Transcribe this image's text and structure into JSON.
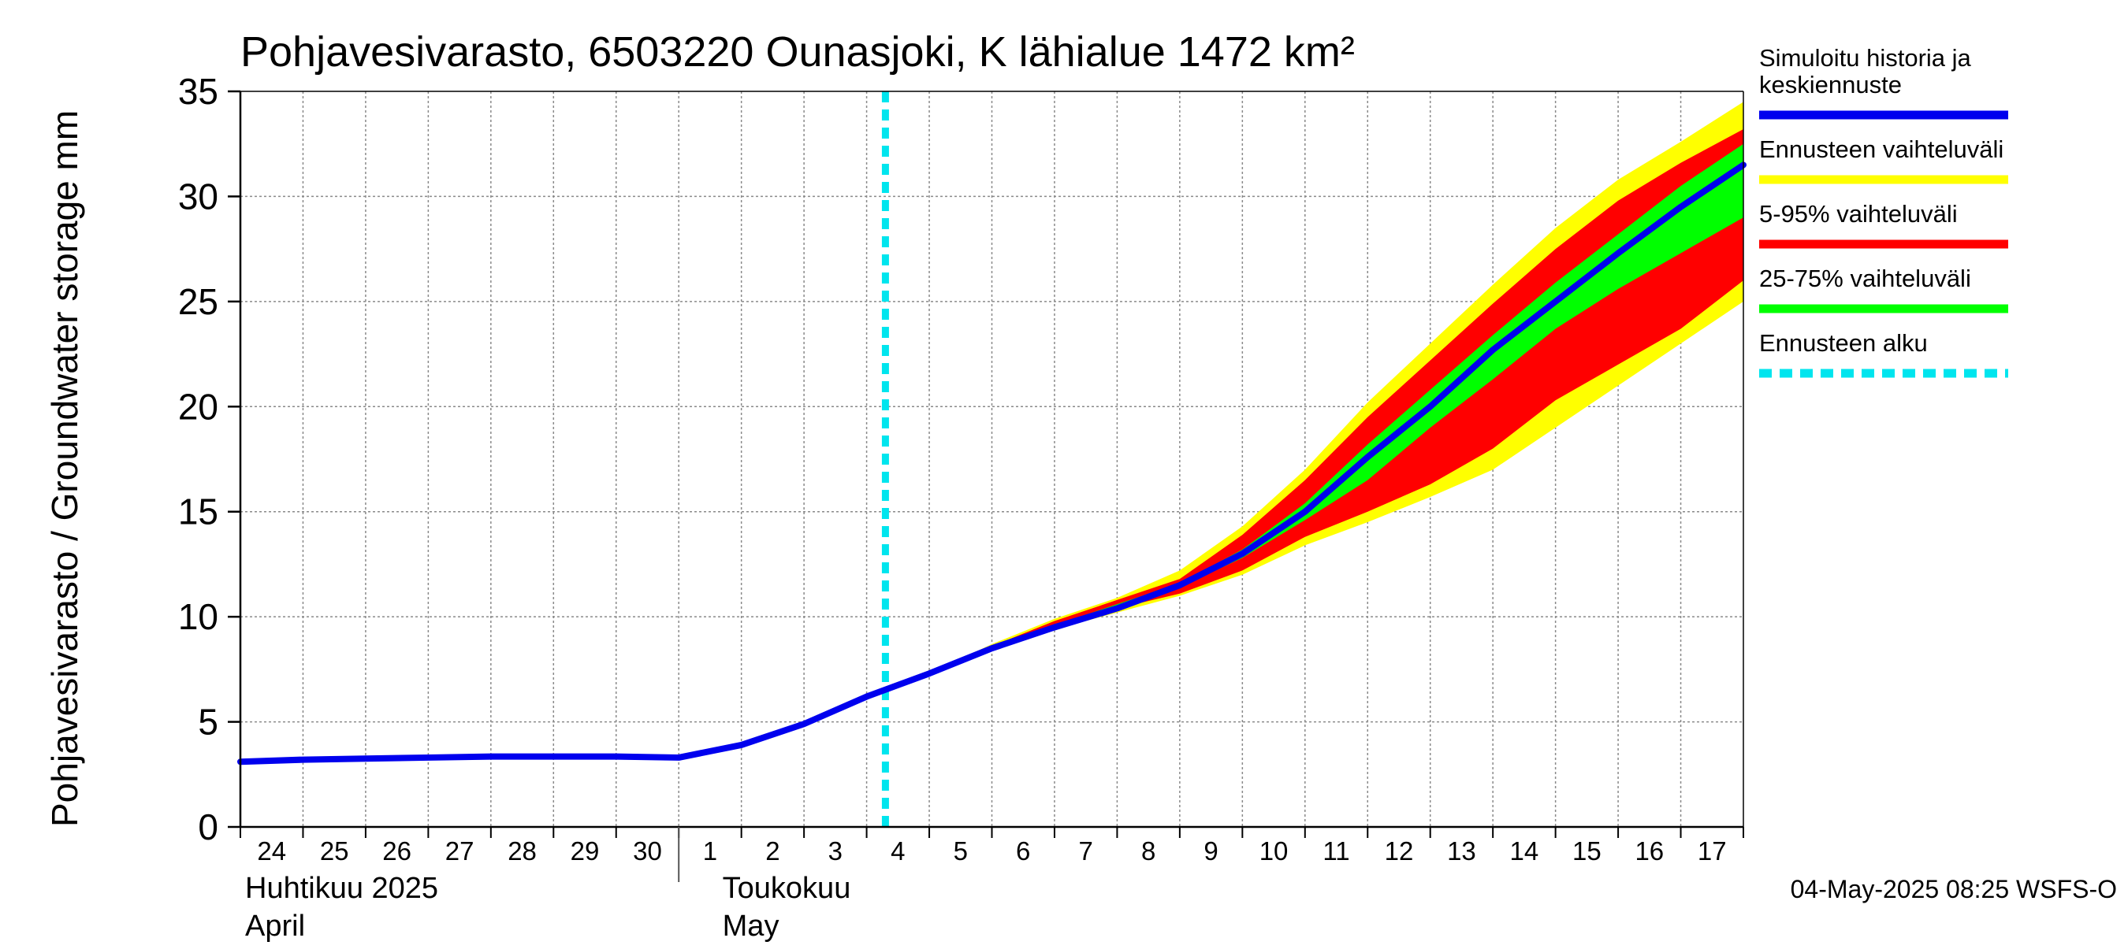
{
  "chart_data": {
    "type": "area",
    "title": "Pohjavesivarasto, 6503220 Ounasjoki, K lähialue 1472 km²",
    "ylabel": "Pohjavesivarasto / Groundwater storage   mm",
    "ylim": [
      0,
      35
    ],
    "y_ticks": [
      "0",
      "5",
      "10",
      "15",
      "20",
      "25",
      "30",
      "35"
    ],
    "x_tick_labels": [
      "24",
      "25",
      "26",
      "27",
      "28",
      "29",
      "30",
      "1",
      "2",
      "3",
      "4",
      "5",
      "6",
      "7",
      "8",
      "9",
      "10",
      "11",
      "12",
      "13",
      "14",
      "15",
      "16",
      "17"
    ],
    "month_labels": [
      {
        "line1": "Huhtikuu  2025",
        "line2": "April"
      },
      {
        "line1": "Toukokuu",
        "line2": "May"
      }
    ],
    "grid": true,
    "legend_position": "right",
    "forecast_start_day": 10.3,
    "legend": [
      {
        "label_lines": [
          "Simuloitu historia ja",
          "keskiennuste"
        ],
        "color": "#0000ee",
        "style": "solid"
      },
      {
        "label_lines": [
          "Ennusteen vaihteluväli"
        ],
        "color": "#ffff00",
        "style": "solid"
      },
      {
        "label_lines": [
          "5-95% vaihteluväli"
        ],
        "color": "#ff0000",
        "style": "solid"
      },
      {
        "label_lines": [
          "25-75% vaihteluväli"
        ],
        "color": "#00ff00",
        "style": "solid"
      },
      {
        "label_lines": [
          "Ennusteen alku"
        ],
        "color": "#00e5ee",
        "style": "dashed"
      }
    ],
    "series": [
      {
        "name": "Simuloitu historia ja keskiennuste",
        "x": [
          0,
          1,
          2,
          3,
          4,
          5,
          6,
          7,
          8,
          9,
          10,
          11,
          12,
          13,
          14,
          15,
          16,
          17,
          18,
          19,
          20,
          21,
          22,
          23,
          24
        ],
        "values": [
          3.1,
          3.2,
          3.25,
          3.3,
          3.35,
          3.35,
          3.35,
          3.3,
          3.9,
          4.9,
          6.2,
          7.3,
          8.5,
          9.5,
          10.4,
          11.5,
          13.0,
          15.0,
          17.6,
          20.0,
          22.7,
          25.0,
          27.3,
          29.5,
          31.5
        ]
      },
      {
        "name": "Ennusteen vaihteluväli",
        "x": [
          10.3,
          11,
          12,
          13,
          14,
          15,
          16,
          17,
          18,
          19,
          20,
          21,
          22,
          23,
          24
        ],
        "lower": [
          6.4,
          7.3,
          8.5,
          9.4,
          10.2,
          11.0,
          12.0,
          13.4,
          14.5,
          15.7,
          17.0,
          19.0,
          21.0,
          23.0,
          25.0
        ],
        "upper": [
          6.4,
          7.3,
          8.7,
          9.9,
          10.9,
          12.2,
          14.3,
          17.0,
          20.2,
          23.0,
          25.8,
          28.5,
          30.8,
          32.6,
          34.5
        ]
      },
      {
        "name": "5-95% vaihteluväli",
        "x": [
          10.3,
          11,
          12,
          13,
          14,
          15,
          16,
          17,
          18,
          19,
          20,
          21,
          22,
          23,
          24
        ],
        "lower": [
          6.4,
          7.3,
          8.5,
          9.5,
          10.4,
          11.1,
          12.2,
          13.8,
          15.0,
          16.3,
          18.0,
          20.3,
          22.0,
          23.7,
          26.0
        ],
        "upper": [
          6.4,
          7.3,
          8.6,
          9.8,
          10.8,
          11.8,
          13.9,
          16.5,
          19.5,
          22.2,
          24.9,
          27.5,
          29.8,
          31.6,
          33.2
        ]
      },
      {
        "name": "25-75% vaihteluväli",
        "x": [
          10.3,
          11,
          12,
          13,
          14,
          15,
          16,
          17,
          18,
          19,
          20,
          21,
          22,
          23,
          24
        ],
        "lower": [
          6.4,
          7.3,
          8.5,
          9.5,
          10.4,
          11.4,
          12.8,
          14.6,
          16.5,
          19.0,
          21.3,
          23.7,
          25.6,
          27.3,
          29.0
        ],
        "upper": [
          6.4,
          7.3,
          8.5,
          9.6,
          10.6,
          11.6,
          13.2,
          15.4,
          18.2,
          20.8,
          23.4,
          25.9,
          28.2,
          30.5,
          32.5
        ]
      }
    ]
  },
  "timestamp": "04-May-2025 08:25 WSFS-O"
}
